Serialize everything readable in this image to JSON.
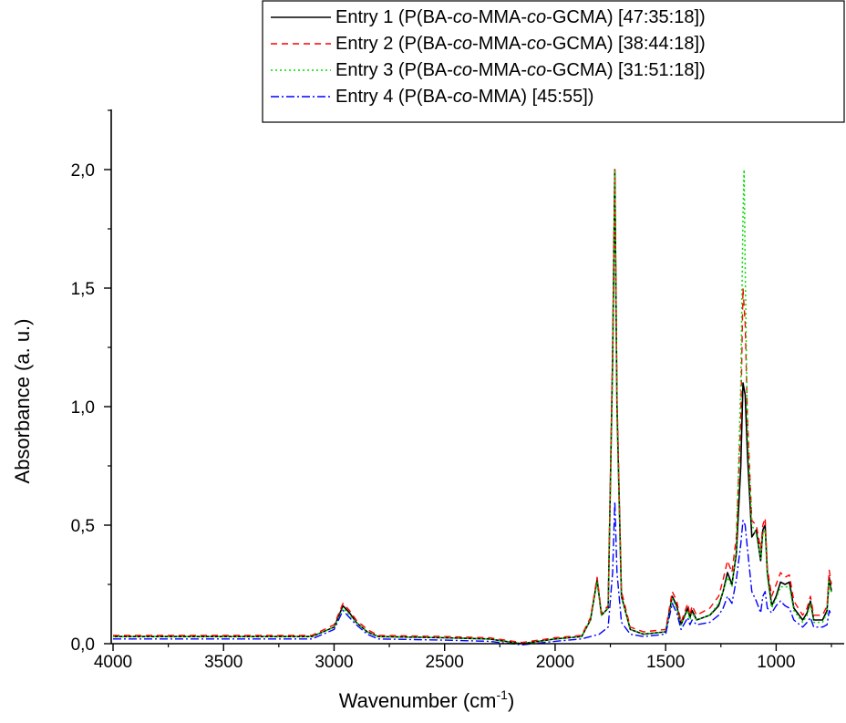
{
  "chart_data": {
    "type": "line",
    "xlabel": "Wavenumber (cm",
    "xlabel_sup": "-1",
    "xlabel_close": ")",
    "ylabel": "Absorbance (a. u.)",
    "xlim": [
      4000,
      750
    ],
    "ylim": [
      0,
      2.25
    ],
    "x_reversed": true,
    "grid": false,
    "legend_position": "top-right",
    "x_ticks": [
      4000,
      3500,
      3000,
      2500,
      2000,
      1500,
      1000
    ],
    "x_tick_labels": [
      "4000",
      "3500",
      "3000",
      "2500",
      "2000",
      "1500",
      "1000"
    ],
    "y_ticks": [
      0,
      0.5,
      1.0,
      1.5,
      2.0
    ],
    "y_tick_labels": [
      "0,0",
      "0,5",
      "1,0",
      "1,5",
      "2,0"
    ],
    "series": [
      {
        "name": "Entry 1 (P(BA-co-MMA-co-GCMA) [47:35:18])",
        "legend_parts": [
          {
            "t": "Entry 1 (P(BA-",
            "i": false
          },
          {
            "t": "co",
            "i": true
          },
          {
            "t": "-MMA-",
            "i": false
          },
          {
            "t": "co",
            "i": true
          },
          {
            "t": "-GCMA) [47:35:18])",
            "i": false
          }
        ],
        "color": "#000000",
        "dash": "",
        "width": 1.6,
        "x": [
          4000,
          3500,
          3100,
          3000,
          2960,
          2930,
          2900,
          2875,
          2850,
          2800,
          2500,
          2300,
          2150,
          2000,
          1880,
          1840,
          1810,
          1790,
          1760,
          1740,
          1730,
          1720,
          1700,
          1660,
          1600,
          1500,
          1470,
          1450,
          1430,
          1400,
          1390,
          1380,
          1360,
          1300,
          1260,
          1240,
          1220,
          1200,
          1180,
          1160,
          1150,
          1140,
          1130,
          1110,
          1090,
          1070,
          1060,
          1050,
          1040,
          1020,
          1000,
          980,
          960,
          940,
          920,
          880,
          860,
          845,
          830,
          790,
          770,
          760,
          750
        ],
        "y": [
          0.03,
          0.03,
          0.03,
          0.07,
          0.16,
          0.13,
          0.09,
          0.07,
          0.05,
          0.03,
          0.025,
          0.02,
          0.0,
          0.02,
          0.03,
          0.1,
          0.27,
          0.12,
          0.15,
          1.2,
          2.0,
          1.0,
          0.2,
          0.06,
          0.04,
          0.05,
          0.2,
          0.16,
          0.08,
          0.15,
          0.11,
          0.14,
          0.1,
          0.12,
          0.16,
          0.22,
          0.3,
          0.25,
          0.38,
          0.75,
          1.1,
          1.05,
          0.8,
          0.45,
          0.48,
          0.35,
          0.48,
          0.5,
          0.3,
          0.16,
          0.2,
          0.26,
          0.25,
          0.26,
          0.15,
          0.1,
          0.13,
          0.18,
          0.1,
          0.1,
          0.14,
          0.28,
          0.22
        ]
      },
      {
        "name": "Entry 2 (P(BA-co-MMA-co-GCMA) [38:44:18])",
        "legend_parts": [
          {
            "t": "Entry 2 (P(BA-",
            "i": false
          },
          {
            "t": "co",
            "i": true
          },
          {
            "t": "-MMA-",
            "i": false
          },
          {
            "t": "co",
            "i": true
          },
          {
            "t": "-GCMA) [38:44:18])",
            "i": false
          }
        ],
        "color": "#ff0000",
        "dash": "7,5",
        "width": 1.4,
        "x": [
          4000,
          3500,
          3100,
          3000,
          2960,
          2930,
          2900,
          2875,
          2850,
          2800,
          2500,
          2300,
          2150,
          2000,
          1880,
          1840,
          1810,
          1790,
          1760,
          1740,
          1730,
          1720,
          1700,
          1660,
          1600,
          1500,
          1470,
          1450,
          1430,
          1400,
          1390,
          1380,
          1360,
          1300,
          1260,
          1240,
          1220,
          1200,
          1180,
          1160,
          1150,
          1140,
          1130,
          1110,
          1090,
          1070,
          1060,
          1050,
          1040,
          1020,
          1000,
          980,
          960,
          940,
          920,
          880,
          860,
          845,
          830,
          790,
          770,
          760,
          750
        ],
        "y": [
          0.035,
          0.035,
          0.035,
          0.08,
          0.17,
          0.14,
          0.1,
          0.08,
          0.06,
          0.035,
          0.03,
          0.025,
          0.005,
          0.025,
          0.035,
          0.11,
          0.28,
          0.13,
          0.16,
          1.25,
          2.0,
          1.05,
          0.22,
          0.07,
          0.05,
          0.06,
          0.22,
          0.18,
          0.09,
          0.17,
          0.12,
          0.16,
          0.12,
          0.15,
          0.2,
          0.27,
          0.35,
          0.3,
          0.45,
          0.95,
          1.5,
          1.35,
          0.95,
          0.52,
          0.5,
          0.4,
          0.5,
          0.53,
          0.32,
          0.2,
          0.25,
          0.3,
          0.28,
          0.29,
          0.18,
          0.12,
          0.15,
          0.2,
          0.12,
          0.12,
          0.16,
          0.31,
          0.25
        ]
      },
      {
        "name": "Entry 3 (P(BA-co-MMA-co-GCMA) [31:51:18])",
        "legend_parts": [
          {
            "t": "Entry 3 (P(BA-",
            "i": false
          },
          {
            "t": "co",
            "i": true
          },
          {
            "t": "-MMA-",
            "i": false
          },
          {
            "t": "co",
            "i": true
          },
          {
            "t": "-GCMA) [31:51:18])",
            "i": false
          }
        ],
        "color": "#00dd00",
        "dash": "2,3",
        "width": 1.5,
        "x": [
          4000,
          3500,
          3100,
          3000,
          2960,
          2930,
          2900,
          2875,
          2850,
          2800,
          2500,
          2300,
          2150,
          2000,
          1880,
          1840,
          1810,
          1790,
          1760,
          1740,
          1730,
          1720,
          1700,
          1660,
          1600,
          1500,
          1470,
          1450,
          1430,
          1400,
          1390,
          1380,
          1360,
          1300,
          1260,
          1240,
          1220,
          1200,
          1180,
          1160,
          1150,
          1145,
          1140,
          1130,
          1110,
          1090,
          1070,
          1060,
          1050,
          1040,
          1020,
          1000,
          980,
          960,
          940,
          920,
          880,
          860,
          845,
          830,
          790,
          770,
          760,
          750
        ],
        "y": [
          0.03,
          0.03,
          0.03,
          0.07,
          0.15,
          0.12,
          0.09,
          0.07,
          0.05,
          0.03,
          0.025,
          0.02,
          0.0,
          0.02,
          0.03,
          0.1,
          0.26,
          0.12,
          0.15,
          1.15,
          2.0,
          0.95,
          0.2,
          0.06,
          0.04,
          0.05,
          0.19,
          0.15,
          0.08,
          0.14,
          0.1,
          0.13,
          0.1,
          0.12,
          0.17,
          0.22,
          0.28,
          0.24,
          0.4,
          1.1,
          1.8,
          2.0,
          1.6,
          0.9,
          0.5,
          0.46,
          0.36,
          0.46,
          0.48,
          0.28,
          0.15,
          0.19,
          0.24,
          0.24,
          0.24,
          0.14,
          0.09,
          0.12,
          0.17,
          0.09,
          0.09,
          0.13,
          0.27,
          0.21
        ]
      },
      {
        "name": "Entry 4 (P(BA-co-MMA) [45:55])",
        "legend_parts": [
          {
            "t": "Entry 4 (P(BA-",
            "i": false
          },
          {
            "t": "co",
            "i": true
          },
          {
            "t": "-MMA) [45:55])",
            "i": false
          }
        ],
        "color": "#0000ff",
        "dash": "9,3,2,3",
        "width": 1.4,
        "x": [
          4000,
          3500,
          3100,
          3000,
          2960,
          2930,
          2900,
          2875,
          2850,
          2800,
          2500,
          2300,
          2150,
          2000,
          1880,
          1840,
          1800,
          1760,
          1740,
          1730,
          1720,
          1700,
          1660,
          1600,
          1500,
          1470,
          1450,
          1430,
          1400,
          1390,
          1380,
          1360,
          1300,
          1260,
          1240,
          1220,
          1200,
          1180,
          1160,
          1150,
          1140,
          1130,
          1110,
          1090,
          1070,
          1060,
          1050,
          1040,
          1020,
          1000,
          980,
          960,
          940,
          920,
          880,
          860,
          845,
          830,
          790,
          770,
          760,
          750
        ],
        "y": [
          0.02,
          0.02,
          0.02,
          0.06,
          0.14,
          0.11,
          0.08,
          0.06,
          0.04,
          0.02,
          0.015,
          0.01,
          -0.005,
          0.01,
          0.02,
          0.03,
          0.04,
          0.07,
          0.3,
          0.6,
          0.3,
          0.09,
          0.04,
          0.03,
          0.04,
          0.17,
          0.13,
          0.06,
          0.11,
          0.08,
          0.1,
          0.08,
          0.09,
          0.12,
          0.15,
          0.2,
          0.17,
          0.27,
          0.42,
          0.52,
          0.5,
          0.4,
          0.22,
          0.18,
          0.13,
          0.2,
          0.22,
          0.15,
          0.13,
          0.16,
          0.18,
          0.16,
          0.15,
          0.1,
          0.07,
          0.09,
          0.11,
          0.07,
          0.07,
          0.08,
          0.14,
          0.12
        ]
      }
    ]
  }
}
